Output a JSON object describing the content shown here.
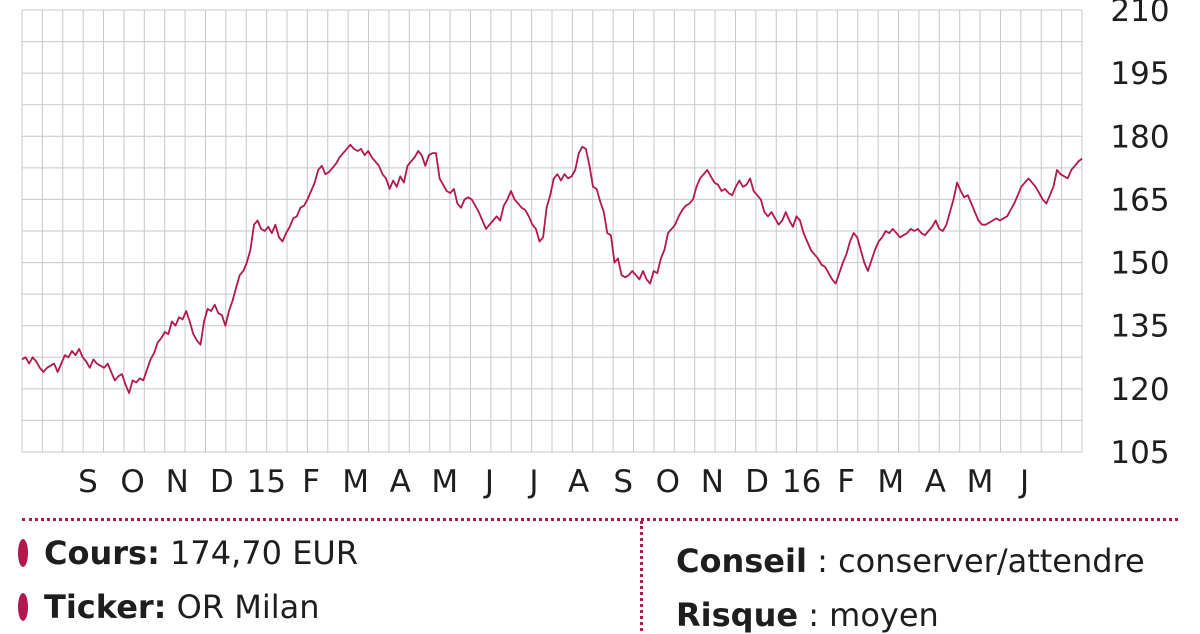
{
  "chart_data": {
    "type": "line",
    "title": "",
    "xlabel": "",
    "ylabel": "",
    "ylim": [
      105,
      210
    ],
    "y_ticks": [
      210,
      195,
      180,
      165,
      150,
      135,
      120,
      105
    ],
    "x_tick_labels": [
      "S",
      "O",
      "N",
      "D",
      "15",
      "F",
      "M",
      "A",
      "M",
      "J",
      "J",
      "A",
      "S",
      "O",
      "N",
      "D",
      "16",
      "F",
      "M",
      "A",
      "M",
      "J"
    ],
    "grid": true,
    "line_color": "#b2174e",
    "series": [
      {
        "values": [
          127.0,
          127.5,
          126.0,
          127.5,
          126.5,
          125.0,
          124.0,
          125.0,
          125.5,
          126.0,
          124.0,
          126.0,
          128.0,
          127.5,
          129.0,
          128.0,
          129.5,
          127.5,
          126.5,
          125.0,
          127.0,
          126.0,
          125.5,
          125.0,
          126.0,
          124.0,
          122.0,
          123.0,
          123.5,
          121.0,
          119.0,
          122.0,
          121.5,
          122.5,
          122.0,
          124.5,
          127.0,
          128.5,
          131.0,
          132.0,
          133.5,
          133.0,
          136.0,
          135.0,
          137.0,
          136.5,
          138.5,
          136.0,
          133.0,
          131.5,
          130.5,
          136.0,
          139.0,
          138.5,
          140.0,
          138.0,
          137.5,
          135.0,
          138.5,
          141.0,
          144.0,
          147.0,
          148.0,
          150.0,
          153.0,
          159.0,
          160.0,
          158.0,
          157.5,
          158.5,
          157.0,
          159.0,
          156.0,
          155.0,
          157.0,
          158.5,
          160.5,
          161.0,
          163.0,
          163.5,
          165.0,
          167.0,
          169.0,
          172.0,
          173.0,
          171.0,
          171.5,
          172.5,
          173.5,
          175.0,
          176.0,
          177.0,
          178.0,
          177.0,
          176.5,
          177.0,
          175.5,
          176.5,
          175.0,
          174.0,
          173.0,
          171.0,
          170.0,
          167.5,
          169.5,
          168.0,
          170.5,
          169.0,
          173.0,
          174.0,
          175.0,
          176.5,
          175.5,
          173.0,
          175.5,
          176.0,
          176.0,
          170.0,
          168.5,
          167.0,
          166.5,
          167.5,
          164.0,
          163.0,
          165.0,
          165.5,
          165.0,
          163.5,
          162.0,
          160.0,
          158.0,
          159.0,
          160.0,
          161.0,
          160.0,
          163.5,
          165.0,
          167.0,
          165.0,
          164.0,
          163.0,
          162.5,
          161.0,
          159.0,
          158.0,
          155.0,
          156.0,
          163.0,
          166.0,
          170.0,
          171.0,
          169.5,
          171.0,
          170.0,
          170.5,
          172.0,
          176.0,
          177.5,
          177.0,
          173.0,
          168.0,
          167.5,
          164.5,
          162.0,
          157.0,
          156.5,
          150.0,
          151.0,
          147.0,
          146.5,
          147.0,
          148.0,
          147.0,
          146.0,
          148.0,
          146.0,
          145.0,
          148.0,
          147.5,
          151.0,
          153.0,
          157.0,
          158.0,
          159.0,
          161.0,
          162.5,
          163.5,
          164.0,
          165.0,
          168.0,
          170.0,
          171.0,
          172.0,
          170.5,
          169.0,
          168.5,
          167.0,
          167.5,
          166.5,
          166.0,
          168.0,
          169.5,
          168.0,
          168.5,
          170.0,
          167.0,
          166.0,
          165.0,
          162.0,
          161.0,
          162.0,
          160.5,
          159.0,
          160.0,
          162.0,
          160.0,
          158.5,
          161.0,
          160.0,
          157.0,
          155.0,
          153.0,
          152.0,
          151.0,
          149.5,
          149.0,
          147.5,
          146.0,
          145.0,
          147.5,
          150.0,
          152.0,
          155.0,
          157.0,
          156.0,
          153.0,
          150.0,
          148.0,
          150.5,
          153.0,
          155.0,
          156.0,
          157.5,
          157.0,
          158.0,
          157.0,
          156.0,
          156.5,
          157.0,
          158.0,
          157.5,
          158.0,
          157.0,
          156.5,
          157.5,
          158.5,
          160.0,
          158.0,
          157.5,
          159.0,
          162.0,
          165.0,
          169.0,
          167.0,
          165.5,
          166.0,
          164.0,
          162.0,
          160.0,
          159.0,
          159.0,
          159.5,
          160.0,
          160.5,
          160.0,
          160.5,
          161.0,
          162.5,
          164.0,
          166.0,
          168.0,
          169.0,
          170.0,
          169.0,
          168.0,
          166.5,
          165.0,
          164.0,
          166.0,
          168.0,
          172.0,
          171.0,
          170.5,
          170.0,
          172.0,
          173.0,
          174.0,
          174.7
        ]
      }
    ]
  },
  "info": {
    "cours": {
      "label": "Cours:",
      "value": "174,70 EUR"
    },
    "ticker": {
      "label": "Ticker:",
      "value": "OR Milan"
    },
    "conseil": {
      "label": "Conseil",
      "sep": ":",
      "value": "conserver/attendre"
    },
    "risque": {
      "label": "Risque",
      "sep": ":",
      "value": "moyen"
    }
  }
}
